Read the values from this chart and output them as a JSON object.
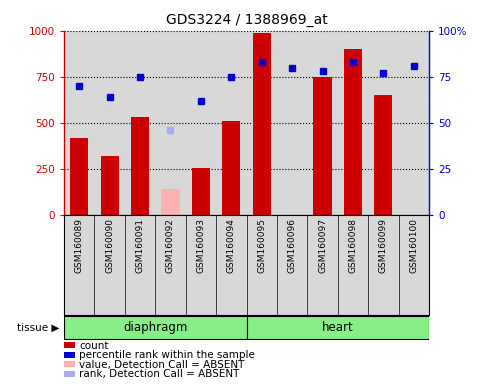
{
  "title": "GDS3224 / 1388969_at",
  "samples": [
    "GSM160089",
    "GSM160090",
    "GSM160091",
    "GSM160092",
    "GSM160093",
    "GSM160094",
    "GSM160095",
    "GSM160096",
    "GSM160097",
    "GSM160098",
    "GSM160099",
    "GSM160100"
  ],
  "count_values": [
    420,
    320,
    530,
    null,
    255,
    510,
    985,
    null,
    750,
    900,
    650,
    null
  ],
  "count_absent": [
    null,
    null,
    null,
    140,
    null,
    null,
    null,
    null,
    null,
    null,
    null,
    null
  ],
  "percentile_values": [
    70,
    64,
    75,
    null,
    62,
    75,
    83,
    80,
    78,
    83,
    77,
    81
  ],
  "percentile_absent": [
    null,
    null,
    null,
    46,
    null,
    null,
    null,
    null,
    null,
    null,
    null,
    null
  ],
  "tissue_groups": [
    {
      "label": "diaphragm",
      "start": 0,
      "end": 6
    },
    {
      "label": "heart",
      "start": 6,
      "end": 12
    }
  ],
  "ylim_left": [
    0,
    1000
  ],
  "ylim_right": [
    0,
    100
  ],
  "yticks_left": [
    0,
    250,
    500,
    750,
    1000
  ],
  "ytick_labels_left": [
    "0",
    "250",
    "500",
    "750",
    "1000"
  ],
  "yticks_right": [
    0,
    25,
    50,
    75,
    100
  ],
  "ytick_labels_right": [
    "0",
    "25",
    "50",
    "75",
    "100%"
  ],
  "bar_color": "#cc0000",
  "bar_absent_color": "#ffb0b0",
  "dot_color": "#0000cc",
  "dot_absent_color": "#aaaaee",
  "bg_color": "#d8d8d8",
  "tissue_color": "#88ee88",
  "legend_items": [
    {
      "label": "count",
      "color": "#cc0000"
    },
    {
      "label": "percentile rank within the sample",
      "color": "#0000cc"
    },
    {
      "label": "value, Detection Call = ABSENT",
      "color": "#ffb0b0"
    },
    {
      "label": "rank, Detection Call = ABSENT",
      "color": "#aaaaee"
    }
  ]
}
